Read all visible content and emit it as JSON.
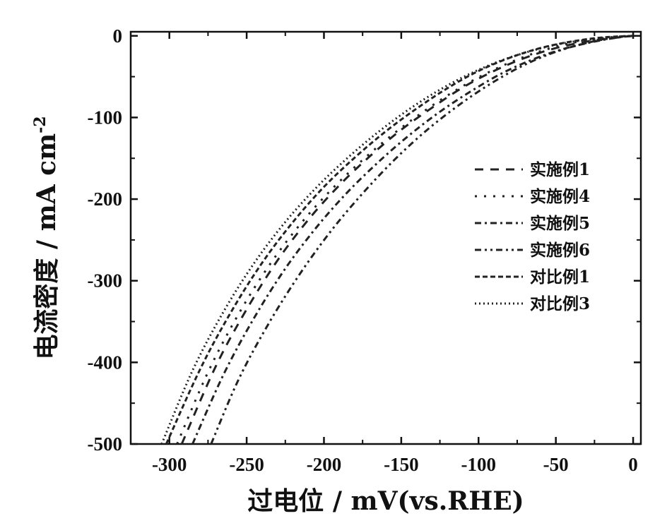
{
  "chart_data": {
    "type": "line",
    "xlabel": "过电位 / mV(vs.RHE)",
    "ylabel": "电流密度 / mA cm",
    "ylabel_sup": "-2",
    "xlim": [
      -325,
      5
    ],
    "ylim": [
      -500,
      5
    ],
    "xticks": [
      -300,
      -250,
      -200,
      -150,
      -100,
      -50,
      0
    ],
    "yticks": [
      0,
      -100,
      -200,
      -300,
      -400,
      -500
    ],
    "xtick_labels": [
      "-300",
      "-250",
      "-200",
      "-150",
      "-100",
      "-50",
      "0"
    ],
    "ytick_labels": [
      "0",
      "-100",
      "-200",
      "-300",
      "-400",
      "-500"
    ],
    "grid": false,
    "legend_position": "right",
    "series": [
      {
        "name": "实施例1",
        "dash": "12,10",
        "color": "#222222",
        "x": [
          -292,
          -270,
          -250,
          -230,
          -210,
          -190,
          -170,
          -150,
          -130,
          -110,
          -90,
          -70,
          -50,
          -30,
          -10,
          0
        ],
        "y": [
          -500,
          -405,
          -335,
          -275,
          -225,
          -183,
          -147,
          -115,
          -88,
          -63,
          -43,
          -27,
          -15,
          -7,
          -2,
          0
        ]
      },
      {
        "name": "实施例4",
        "dash": "3,10",
        "color": "#222222",
        "x": [
          -295,
          -275,
          -255,
          -235,
          -215,
          -195,
          -175,
          -155,
          -135,
          -115,
          -95,
          -75,
          -55,
          -35,
          -15,
          0
        ],
        "y": [
          -500,
          -412,
          -340,
          -280,
          -230,
          -188,
          -152,
          -120,
          -92,
          -67,
          -46,
          -29,
          -16,
          -7,
          -2,
          0
        ]
      },
      {
        "name": "实施例5",
        "dash": "9,5,3,5",
        "color": "#222222",
        "x": [
          -285,
          -265,
          -245,
          -225,
          -205,
          -185,
          -165,
          -145,
          -125,
          -105,
          -85,
          -65,
          -45,
          -25,
          -10,
          0
        ],
        "y": [
          -500,
          -415,
          -345,
          -285,
          -235,
          -192,
          -155,
          -122,
          -93,
          -68,
          -46,
          -29,
          -16,
          -7,
          -2,
          0
        ]
      },
      {
        "name": "实施例6",
        "dash": "9,5,3,5,3,5",
        "color": "#222222",
        "x": [
          -273,
          -255,
          -235,
          -215,
          -195,
          -175,
          -155,
          -135,
          -115,
          -95,
          -75,
          -55,
          -35,
          -15,
          0
        ],
        "y": [
          -500,
          -420,
          -350,
          -290,
          -238,
          -193,
          -153,
          -118,
          -88,
          -62,
          -40,
          -23,
          -11,
          -3,
          0
        ]
      },
      {
        "name": "对比例1",
        "dash": "7,4",
        "color": "#222222",
        "x": [
          -302,
          -280,
          -260,
          -240,
          -220,
          -200,
          -180,
          -160,
          -140,
          -120,
          -100,
          -80,
          -60,
          -40,
          -20,
          0
        ],
        "y": [
          -500,
          -408,
          -338,
          -278,
          -228,
          -185,
          -149,
          -117,
          -89,
          -64,
          -43,
          -27,
          -15,
          -7,
          -2,
          0
        ]
      },
      {
        "name": "对比例3",
        "dash": "2,4",
        "color": "#222222",
        "x": [
          -305,
          -285,
          -265,
          -245,
          -225,
          -205,
          -185,
          -165,
          -145,
          -125,
          -105,
          -85,
          -65,
          -45,
          -25,
          -10,
          0
        ],
        "y": [
          -500,
          -410,
          -338,
          -278,
          -228,
          -186,
          -150,
          -118,
          -90,
          -66,
          -46,
          -30,
          -18,
          -9,
          -4,
          -1,
          0
        ]
      }
    ]
  }
}
